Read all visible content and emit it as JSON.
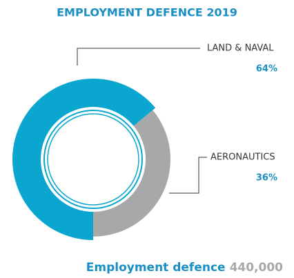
{
  "chart_data": {
    "type": "donut",
    "title": "EMPLOYMENT DEFENCE 2019",
    "series": [
      {
        "name": "LAND & NAVAL",
        "color": "#0aa6cf",
        "values": [
          64
        ],
        "value_labels": [
          "64%"
        ]
      },
      {
        "name": "AERONAUTICS",
        "color": "#a8a8aa",
        "values": [
          36
        ],
        "value_labels": [
          "36%"
        ]
      }
    ],
    "footer": {
      "text": "Employment defence",
      "value": 440000,
      "value_label": "440,000"
    }
  }
}
